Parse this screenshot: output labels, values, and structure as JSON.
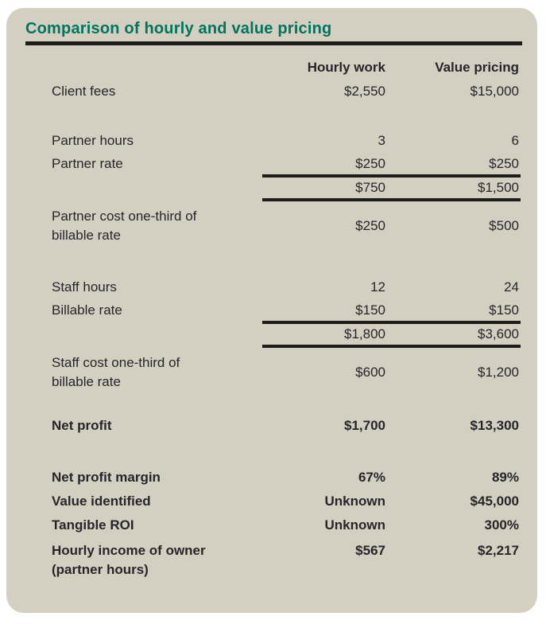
{
  "title": "Comparison of hourly and value pricing",
  "colors": {
    "card_background": "#d3d0c2",
    "title_green": "#00745e",
    "rule_black": "#1d1d1b",
    "text": "#26262a"
  },
  "columns": {
    "hourly": "Hourly work",
    "value": "Value pricing"
  },
  "rows": {
    "client_fees": {
      "label": "Client fees",
      "hourly": "$2,550",
      "value": "$15,000"
    },
    "partner_hours": {
      "label": "Partner hours",
      "hourly": "3",
      "value": "6"
    },
    "partner_rate": {
      "label": "Partner rate",
      "hourly": "$250",
      "value": "$250"
    },
    "partner_subtotal": {
      "label": "",
      "hourly": "$750",
      "value": "$1,500"
    },
    "partner_cost": {
      "label_line1": "Partner cost one-third of",
      "label_line2": "billable rate",
      "hourly": "$250",
      "value": "$500"
    },
    "staff_hours": {
      "label": "Staff hours",
      "hourly": "12",
      "value": "24"
    },
    "billable_rate": {
      "label": "Billable rate",
      "hourly": "$150",
      "value": "$150"
    },
    "staff_subtotal": {
      "label": "",
      "hourly": "$1,800",
      "value": "$3,600"
    },
    "staff_cost": {
      "label_line1": "Staff cost one-third of",
      "label_line2": "billable rate",
      "hourly": "$600",
      "value": "$1,200"
    },
    "net_profit": {
      "label": "Net profit",
      "hourly": "$1,700",
      "value": "$13,300"
    },
    "net_profit_margin": {
      "label": "Net profit margin",
      "hourly": "67%",
      "value": "89%"
    },
    "value_identified": {
      "label": "Value identified",
      "hourly": "Unknown",
      "value": "$45,000"
    },
    "tangible_roi": {
      "label": "Tangible ROI",
      "hourly": "Unknown",
      "value": "300%"
    },
    "hourly_income": {
      "label_line1": "Hourly income of owner",
      "label_line2": "(partner hours)",
      "hourly": "$567",
      "value": "$2,217"
    }
  }
}
